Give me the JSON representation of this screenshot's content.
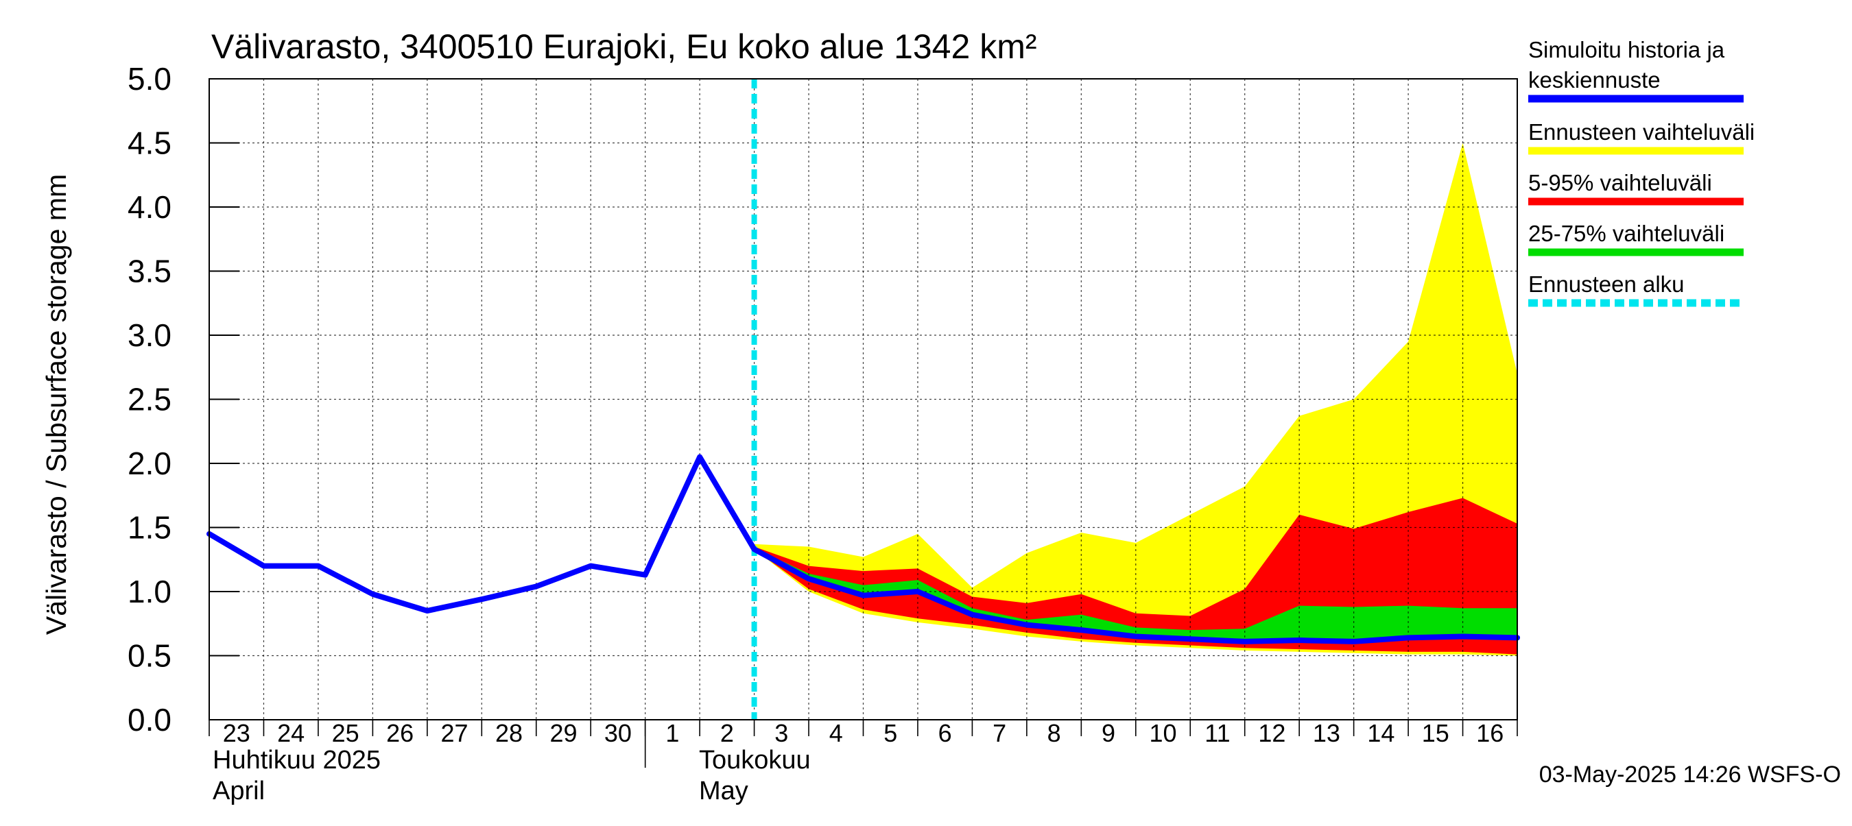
{
  "chart_data": {
    "type": "area",
    "title": "Välivarasto, 3400510 Eurajoki, Eu koko alue 1342 km²",
    "ylabel": "Välivarasto / Subsurface storage  mm",
    "ylim": [
      0,
      5
    ],
    "y_ticks": [
      "0.0",
      "0.5",
      "1.0",
      "1.5",
      "2.0",
      "2.5",
      "3.0",
      "3.5",
      "4.0",
      "4.5",
      "5.0"
    ],
    "x_day_labels": [
      "23",
      "24",
      "25",
      "26",
      "27",
      "28",
      "29",
      "30",
      "1",
      "2",
      "3",
      "4",
      "5",
      "6",
      "7",
      "8",
      "9",
      "10",
      "11",
      "12",
      "13",
      "14",
      "15",
      "16"
    ],
    "month_labels": {
      "april_fi": "Huhtikuu  2025",
      "april_en": "April",
      "may_fi": "Toukokuu",
      "may_en": "May"
    },
    "grid": true,
    "legend_position": "right",
    "forecast_start": "2025-05-03",
    "dates": [
      "2025-04-23",
      "2025-04-24",
      "2025-04-25",
      "2025-04-26",
      "2025-04-27",
      "2025-04-28",
      "2025-04-29",
      "2025-04-30",
      "2025-05-01",
      "2025-05-02",
      "2025-05-03",
      "2025-05-04",
      "2025-05-05",
      "2025-05-06",
      "2025-05-07",
      "2025-05-08",
      "2025-05-09",
      "2025-05-10",
      "2025-05-11",
      "2025-05-12",
      "2025-05-13",
      "2025-05-14",
      "2025-05-15",
      "2025-05-16",
      "2025-05-17"
    ],
    "series": [
      {
        "name": "Simuloitu historia ja keskiennuste",
        "color": "#0000ff",
        "kind": "line",
        "values": [
          1.45,
          1.2,
          1.2,
          0.98,
          0.85,
          0.94,
          1.04,
          1.2,
          1.13,
          2.05,
          1.33,
          1.1,
          0.97,
          1.0,
          0.82,
          0.74,
          0.7,
          0.65,
          0.63,
          0.61,
          0.62,
          0.61,
          0.64,
          0.65,
          0.64
        ]
      },
      {
        "name": "Ennusteen vaihteluväli",
        "color": "#ffff00",
        "kind": "band",
        "start_index": 10,
        "upper": [
          1.37,
          1.35,
          1.27,
          1.45,
          1.03,
          1.3,
          1.46,
          1.38,
          1.6,
          1.82,
          2.37,
          2.5,
          2.95,
          4.5,
          2.7
        ],
        "lower": [
          1.33,
          1.0,
          0.83,
          0.76,
          0.71,
          0.65,
          0.61,
          0.58,
          0.56,
          0.54,
          0.53,
          0.52,
          0.51,
          0.51,
          0.5
        ]
      },
      {
        "name": "5-95% vaihteluväli",
        "color": "#ff0000",
        "kind": "band",
        "start_index": 10,
        "upper": [
          1.35,
          1.2,
          1.16,
          1.18,
          0.96,
          0.91,
          0.98,
          0.83,
          0.81,
          1.02,
          1.6,
          1.49,
          1.62,
          1.73,
          1.53
        ],
        "lower": [
          1.33,
          1.02,
          0.86,
          0.79,
          0.74,
          0.68,
          0.63,
          0.6,
          0.58,
          0.56,
          0.55,
          0.54,
          0.53,
          0.53,
          0.51
        ]
      },
      {
        "name": "25-75% vaihteluväli",
        "color": "#00dd00",
        "kind": "band",
        "start_index": 10,
        "upper": [
          1.34,
          1.14,
          1.05,
          1.09,
          0.87,
          0.78,
          0.82,
          0.72,
          0.7,
          0.71,
          0.89,
          0.88,
          0.89,
          0.87,
          0.87
        ]
      },
      {
        "name": "Ennusteen alku",
        "color": "#00e5ee",
        "kind": "vline",
        "at_index": 10
      }
    ]
  },
  "legend": [
    {
      "line1": "Simuloitu historia ja",
      "line2": "keskiennuste",
      "color": "#0000ff",
      "style": "solid"
    },
    {
      "line1": "Ennusteen vaihteluväli",
      "line2": "",
      "color": "#ffff00",
      "style": "solid"
    },
    {
      "line1": "5-95% vaihteluväli",
      "line2": "",
      "color": "#ff0000",
      "style": "solid"
    },
    {
      "line1": "25-75% vaihteluväli",
      "line2": "",
      "color": "#00dd00",
      "style": "solid"
    },
    {
      "line1": "Ennusteen alku",
      "line2": "",
      "color": "#00e5ee",
      "style": "dashed"
    }
  ],
  "footer": "03-May-2025 14:26 WSFS-O"
}
